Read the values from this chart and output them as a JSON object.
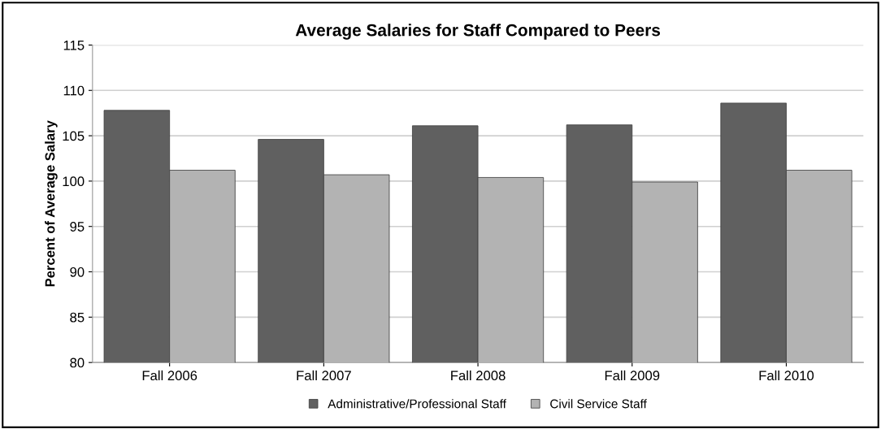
{
  "chart_data": {
    "type": "bar",
    "title": "Average Salaries for Staff Compared to Peers",
    "ylabel": "Percent of Average Salary",
    "categories": [
      "Fall 2006",
      "Fall 2007",
      "Fall 2008",
      "Fall 2009",
      "Fall 2010"
    ],
    "series": [
      {
        "name": "Administrative/Professional Staff",
        "color": "#606060",
        "values": [
          107.8,
          104.6,
          106.1,
          106.2,
          108.6
        ]
      },
      {
        "name": "Civil Service Staff",
        "color": "#b3b3b3",
        "values": [
          101.2,
          100.7,
          100.4,
          99.9,
          101.2
        ]
      }
    ],
    "ylim": [
      80,
      115
    ],
    "yticks": [
      80,
      85,
      90,
      95,
      100,
      105,
      110,
      115
    ],
    "grid": "y",
    "legend": "bottom"
  }
}
